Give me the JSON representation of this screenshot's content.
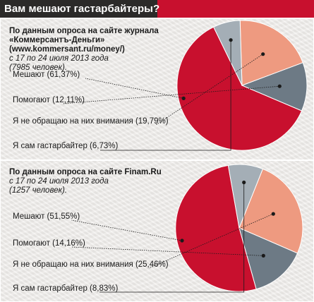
{
  "header": {
    "title": "Вам мешают гастарбайтеры?"
  },
  "charts": [
    {
      "source_lines": [
        "По данным опроса на сайте журнала",
        "«Коммерсантъ-Деньги»",
        "(www.kommersant.ru/money/)"
      ],
      "period": "с 17 по 24 июля 2013 года",
      "respondents": "(7985 человек)."
    },
    {
      "source_lines": [
        "По данным опроса на сайте Finam.Ru"
      ],
      "period": "с 17 по 24 июля 2013 года",
      "respondents": "(1257 человек)."
    }
  ],
  "colors": {
    "red": "#c8102e",
    "slate": "#6d7a85",
    "salmon": "#ee9a80",
    "lightgray": "#a4aeb6",
    "dark": "#2b2a29"
  },
  "chart_data": [
    {
      "type": "pie",
      "title": "Вам мешают гастарбайтеры?",
      "labels": [
        "Мешают (61,37%)",
        "Помогают (12,11%)",
        "Я не обращаю на них внимания (19,79%)",
        "Я сам гастарбайтер (6,73%)"
      ],
      "values": [
        61.37,
        12.11,
        19.79,
        6.73
      ]
    },
    {
      "type": "pie",
      "title": "Вам мешают гастарбайтеры?",
      "labels": [
        "Мешают (51,55%)",
        "Помогают (14,16%)",
        "Я не обращаю на них внимания (25,46%)",
        "Я сам гастарбайтер (8,83%)"
      ],
      "values": [
        51.55,
        14.16,
        25.46,
        8.83
      ]
    }
  ]
}
